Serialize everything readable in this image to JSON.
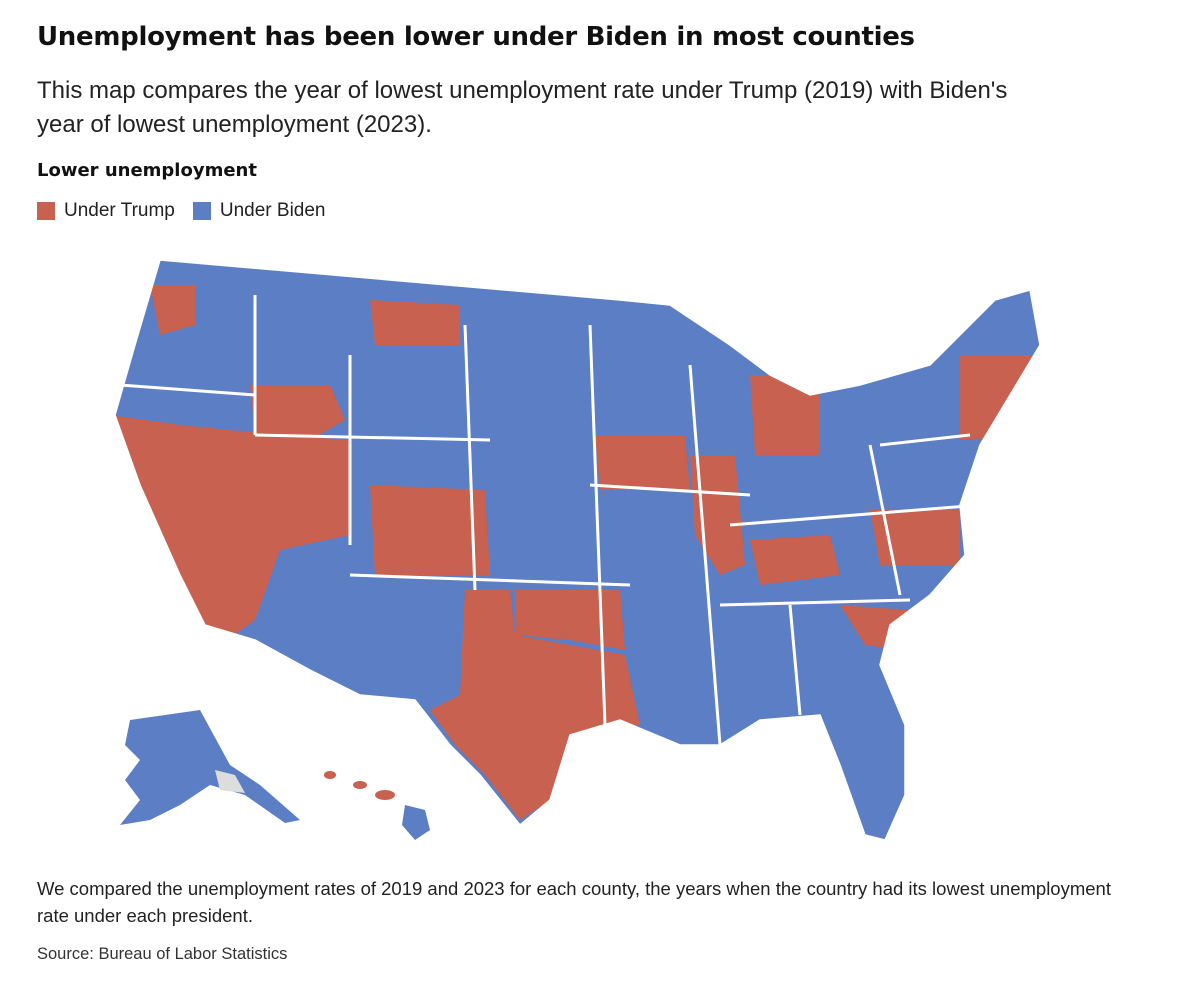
{
  "header": {
    "title": "Unemployment has been lower under Biden in most counties",
    "subtitle": "This map compares the year of lowest unemployment rate under Trump (2019) with Biden's year of lowest unemployment (2023)."
  },
  "legend": {
    "title": "Lower unemployment",
    "items": [
      {
        "label": "Under Trump",
        "color": "#c8614f"
      },
      {
        "label": "Under Biden",
        "color": "#5b7ec4"
      }
    ]
  },
  "colors": {
    "trump": "#c8614f",
    "biden": "#5b7ec4",
    "no_data": "#dddddd",
    "border": "#ffffff"
  },
  "map": {
    "type": "choropleth",
    "geography": "U.S. counties",
    "categories": [
      "Under Trump",
      "Under Biden"
    ]
  },
  "footer": {
    "note": "We compared the unemployment rates of 2019 and 2023 for each county, the years when the country had its lowest unemployment rate under each president.",
    "source": "Source: Bureau of Labor Statistics"
  }
}
